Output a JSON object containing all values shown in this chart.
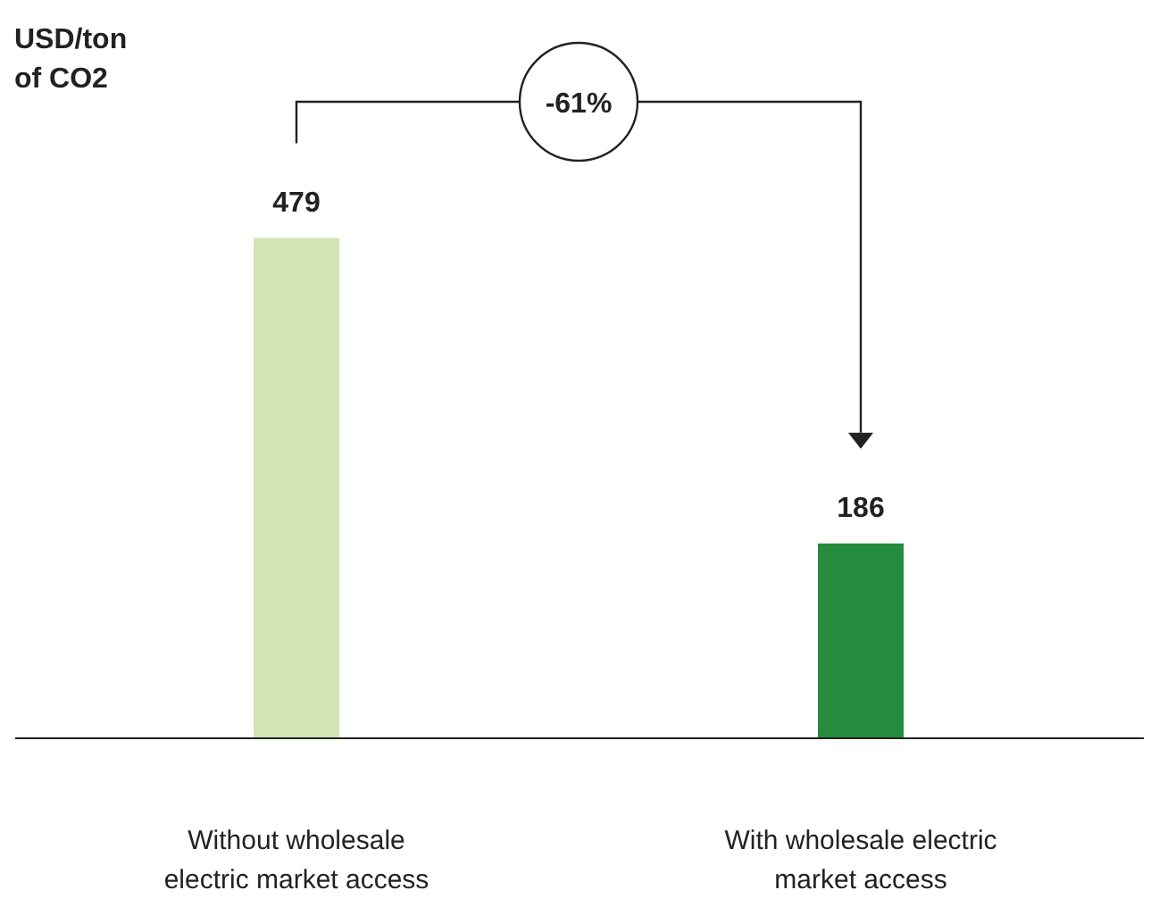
{
  "chart_data": {
    "type": "bar",
    "categories": [
      "Without wholesale electric market access",
      "With wholesale electric market access"
    ],
    "values": [
      479,
      186
    ],
    "colors": [
      "#d0e5b2",
      "#258b3d"
    ],
    "data_labels": true,
    "annotations": [
      "USD/ton of CO2",
      "-61%"
    ]
  }
}
